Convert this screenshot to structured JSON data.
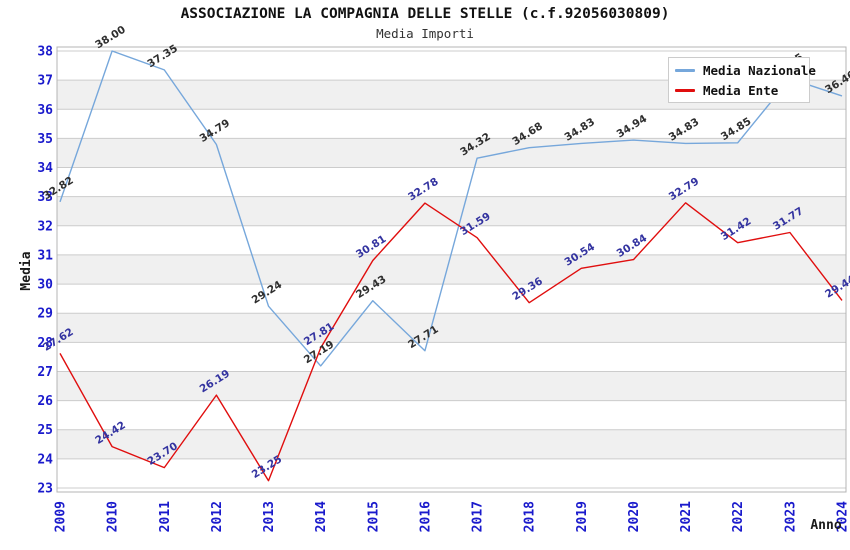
{
  "title": "ASSOCIAZIONE LA COMPAGNIA DELLE STELLE (c.f.92056030809)",
  "subtitle": "Media Importi",
  "legend": {
    "position": "top-right",
    "items": [
      {
        "label": "Media Nazionale",
        "color": "#76a7db"
      },
      {
        "label": "Media Ente",
        "color": "#e00e0e"
      }
    ]
  },
  "axes": {
    "xlabel": "Anno",
    "ylabel": "Media"
  },
  "chart_data": {
    "type": "line",
    "title": "ASSOCIAZIONE LA COMPAGNIA DELLE STELLE (c.f.92056030809)",
    "subtitle": "Media Importi",
    "xlabel": "Anno",
    "ylabel": "Media",
    "categories": [
      "2009",
      "2010",
      "2011",
      "2012",
      "2013",
      "2014",
      "2015",
      "2016",
      "2017",
      "2018",
      "2019",
      "2020",
      "2021",
      "2022",
      "2023",
      "2024"
    ],
    "series": [
      {
        "name": "Media Nazionale",
        "color": "#76a7db",
        "label_color": "#2e2e2e",
        "values": [
          32.82,
          38.0,
          37.35,
          34.79,
          29.24,
          27.19,
          29.43,
          27.71,
          34.32,
          34.68,
          34.83,
          34.94,
          34.83,
          34.85,
          37.05,
          36.46
        ]
      },
      {
        "name": "Media Ente",
        "color": "#e00e0e",
        "label_color": "#3333a0",
        "values": [
          27.62,
          24.42,
          23.7,
          26.19,
          23.25,
          27.81,
          30.81,
          32.78,
          31.59,
          29.36,
          30.54,
          30.84,
          32.79,
          31.42,
          31.77,
          29.44
        ]
      }
    ],
    "ylim": [
      23,
      38
    ],
    "ytick_step": 1,
    "yticks": [
      23,
      24,
      25,
      26,
      27,
      28,
      29,
      30,
      31,
      32,
      33,
      34,
      35,
      36,
      37,
      38
    ],
    "grid": "horizontal-gridlines-with-alternating-bands",
    "band_color": "#f0f0f0",
    "gridline_color": "#cccccc",
    "plot_border_color": "#b4b4b4",
    "tick_label_color": "#1a1acc",
    "legend_position": "top-right",
    "point_labels_decimals": 2
  }
}
